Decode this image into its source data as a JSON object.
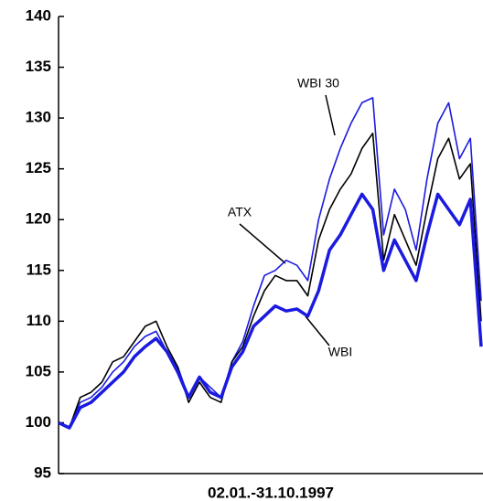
{
  "chart_data": {
    "type": "line",
    "x_label": "02.01.-31.10.1997",
    "categories": [
      null,
      null,
      null,
      null,
      null,
      null,
      null,
      null,
      null,
      null,
      null,
      null,
      null,
      null,
      null,
      null,
      null,
      null,
      null,
      null,
      null,
      null,
      null,
      null,
      null,
      null,
      null,
      null,
      null,
      null,
      null,
      null,
      null,
      null,
      null,
      null,
      null,
      null,
      null,
      null
    ],
    "series": [
      {
        "name": "WBI 30",
        "color": "#1a1ae0",
        "width": 1.6,
        "values": [
          100,
          99.5,
          102,
          102.5,
          103.5,
          105,
          106,
          107.5,
          108.5,
          109,
          107,
          105.5,
          102.5,
          104.5,
          103.5,
          102.5,
          106,
          108,
          111.5,
          114.5,
          115,
          116,
          115.5,
          114,
          120,
          124,
          127,
          129.5,
          131.5,
          132,
          118.5,
          123,
          121,
          117,
          124,
          129.5,
          131.5,
          126,
          128,
          112
        ]
      },
      {
        "name": "ATX",
        "color": "#000000",
        "width": 1.6,
        "values": [
          100,
          99.5,
          102.5,
          103,
          104,
          106,
          106.5,
          108,
          109.5,
          110,
          107.5,
          105.5,
          102,
          104,
          102.5,
          102,
          106,
          107.5,
          110.5,
          113,
          114.5,
          114,
          114,
          112.5,
          118,
          121,
          123,
          124.5,
          127,
          128.5,
          116,
          120.5,
          118,
          115.5,
          121,
          126,
          128,
          124,
          125.5,
          110
        ]
      },
      {
        "name": "WBI",
        "color": "#1a1ae0",
        "width": 3.5,
        "values": [
          100,
          99.5,
          101.5,
          102,
          103,
          104,
          105,
          106.5,
          107.5,
          108.3,
          107,
          105,
          102.5,
          104.5,
          103,
          102.5,
          105.5,
          107,
          109.5,
          110.5,
          111.5,
          111,
          111.2,
          110.5,
          113,
          117,
          118.5,
          120.5,
          122.5,
          121,
          115,
          118,
          116,
          114,
          118.5,
          122.5,
          121,
          119.5,
          122,
          107.5
        ]
      }
    ],
    "ylim": [
      95,
      140
    ],
    "yticks": [
      95,
      100,
      105,
      110,
      115,
      120,
      125,
      130,
      135,
      140
    ]
  }
}
